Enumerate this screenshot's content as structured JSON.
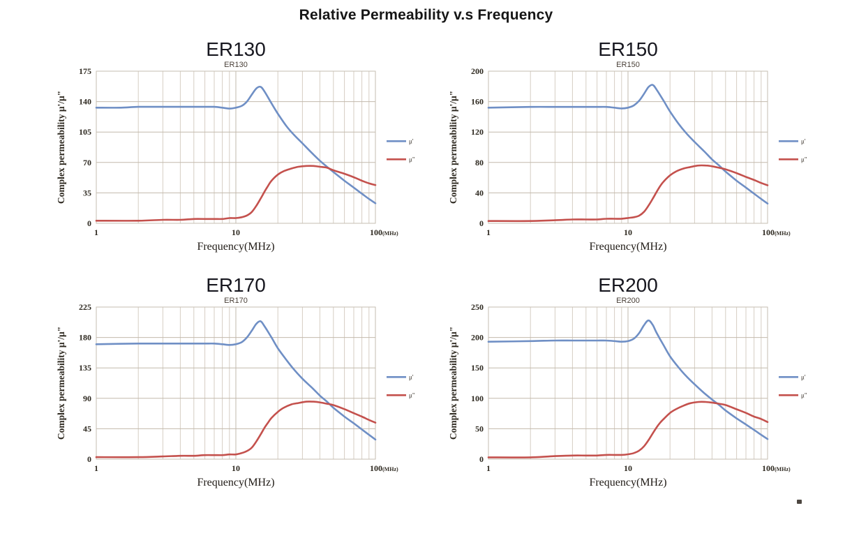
{
  "page": {
    "title": "Relative Permeability v.s Frequency"
  },
  "colors": {
    "mu_prime": "#6f8fc5",
    "mu_double_prime": "#c4514d",
    "grid_minor": "#d6cec3",
    "grid_major": "#c2b9ac",
    "plot_border": "#c6beb2",
    "axis_text": "#2e2920",
    "title_text": "#17171f",
    "subtitle_text": "#4a4038"
  },
  "legend": {
    "mu_prime": "μ'",
    "mu_double_prime": "μ\""
  },
  "axis": {
    "x_label": "Frequency(MHz)",
    "y_label": "Complex permeability  μ'/μ\"",
    "x_tick_1": "1",
    "x_tick_10": "10",
    "x_tick_100": "100",
    "x_unit_suffix": "(MHz)"
  },
  "chart_data": [
    {
      "type": "line",
      "title": "ER130",
      "subtitle": "ER130",
      "xscale": "log",
      "xlim": [
        1,
        100
      ],
      "ylim": [
        0,
        175
      ],
      "yticks": [
        0,
        35,
        70,
        105,
        140,
        175
      ],
      "xlabel": "Frequency(MHz)",
      "ylabel": "Complex permeability μ'/μ\"",
      "legend_position": "right",
      "grid": true,
      "series": [
        {
          "name": "μ'",
          "color_key": "mu_prime",
          "points": [
            [
              1,
              133
            ],
            [
              1.5,
              133
            ],
            [
              2,
              134
            ],
            [
              3,
              134
            ],
            [
              4,
              134
            ],
            [
              5,
              134
            ],
            [
              6,
              134
            ],
            [
              7,
              134
            ],
            [
              8,
              133
            ],
            [
              9,
              132
            ],
            [
              10,
              133
            ],
            [
              11,
              135
            ],
            [
              12,
              140
            ],
            [
              13,
              148
            ],
            [
              14,
              155
            ],
            [
              15,
              157
            ],
            [
              16,
              152
            ],
            [
              18,
              138
            ],
            [
              20,
              126
            ],
            [
              23,
              112
            ],
            [
              26,
              102
            ],
            [
              30,
              92
            ],
            [
              35,
              81
            ],
            [
              40,
              72
            ],
            [
              45,
              65
            ],
            [
              50,
              59
            ],
            [
              60,
              49
            ],
            [
              70,
              41
            ],
            [
              80,
              34
            ],
            [
              90,
              28
            ],
            [
              100,
              23
            ]
          ]
        },
        {
          "name": "μ\"",
          "color_key": "mu_double_prime",
          "points": [
            [
              1,
              3
            ],
            [
              2,
              3
            ],
            [
              3,
              4
            ],
            [
              4,
              4
            ],
            [
              5,
              5
            ],
            [
              6,
              5
            ],
            [
              7,
              5
            ],
            [
              8,
              5
            ],
            [
              9,
              6
            ],
            [
              10,
              6
            ],
            [
              11,
              7
            ],
            [
              12,
              9
            ],
            [
              13,
              13
            ],
            [
              14,
              20
            ],
            [
              15,
              28
            ],
            [
              16,
              36
            ],
            [
              17,
              43
            ],
            [
              18,
              49
            ],
            [
              20,
              56
            ],
            [
              22,
              60
            ],
            [
              25,
              63
            ],
            [
              28,
              65
            ],
            [
              32,
              66
            ],
            [
              36,
              66
            ],
            [
              40,
              65
            ],
            [
              45,
              64
            ],
            [
              50,
              61
            ],
            [
              60,
              57
            ],
            [
              70,
              53
            ],
            [
              80,
              49
            ],
            [
              90,
              46
            ],
            [
              100,
              44
            ]
          ]
        }
      ]
    },
    {
      "type": "line",
      "title": "ER150",
      "subtitle": "ER150",
      "xscale": "log",
      "xlim": [
        1,
        100
      ],
      "ylim": [
        0,
        200
      ],
      "yticks": [
        0,
        40,
        80,
        120,
        160,
        200
      ],
      "xlabel": "Frequency(MHz)",
      "ylabel": "Complex permeability μ'/μ\"",
      "legend_position": "right",
      "grid": true,
      "series": [
        {
          "name": "μ'",
          "color_key": "mu_prime",
          "points": [
            [
              1,
              152
            ],
            [
              2,
              153
            ],
            [
              3,
              153
            ],
            [
              4,
              153
            ],
            [
              5,
              153
            ],
            [
              6,
              153
            ],
            [
              7,
              153
            ],
            [
              8,
              152
            ],
            [
              9,
              151
            ],
            [
              10,
              152
            ],
            [
              11,
              155
            ],
            [
              12,
              161
            ],
            [
              13,
              170
            ],
            [
              14,
              179
            ],
            [
              15,
              182
            ],
            [
              16,
              176
            ],
            [
              18,
              161
            ],
            [
              20,
              147
            ],
            [
              23,
              131
            ],
            [
              26,
              119
            ],
            [
              30,
              107
            ],
            [
              35,
              95
            ],
            [
              40,
              84
            ],
            [
              45,
              76
            ],
            [
              50,
              68
            ],
            [
              60,
              56
            ],
            [
              70,
              47
            ],
            [
              80,
              39
            ],
            [
              90,
              32
            ],
            [
              100,
              26
            ]
          ]
        },
        {
          "name": "μ\"",
          "color_key": "mu_double_prime",
          "points": [
            [
              1,
              3
            ],
            [
              2,
              3
            ],
            [
              3,
              4
            ],
            [
              4,
              5
            ],
            [
              5,
              5
            ],
            [
              6,
              5
            ],
            [
              7,
              6
            ],
            [
              8,
              6
            ],
            [
              9,
              6
            ],
            [
              10,
              7
            ],
            [
              11,
              8
            ],
            [
              12,
              10
            ],
            [
              13,
              15
            ],
            [
              14,
              23
            ],
            [
              15,
              32
            ],
            [
              16,
              41
            ],
            [
              17,
              49
            ],
            [
              18,
              55
            ],
            [
              20,
              63
            ],
            [
              22,
              68
            ],
            [
              25,
              72
            ],
            [
              28,
              74
            ],
            [
              32,
              76
            ],
            [
              36,
              76
            ],
            [
              40,
              75
            ],
            [
              45,
              73
            ],
            [
              50,
              71
            ],
            [
              60,
              66
            ],
            [
              70,
              61
            ],
            [
              80,
              57
            ],
            [
              90,
              53
            ],
            [
              100,
              50
            ]
          ]
        }
      ]
    },
    {
      "type": "line",
      "title": "ER170",
      "subtitle": "ER170",
      "xscale": "log",
      "xlim": [
        1,
        100
      ],
      "ylim": [
        0,
        225
      ],
      "yticks": [
        0,
        45,
        90,
        135,
        180,
        225
      ],
      "xlabel": "Frequency(MHz)",
      "ylabel": "Complex permeability μ'/μ\"",
      "legend_position": "right",
      "grid": true,
      "series": [
        {
          "name": "μ'",
          "color_key": "mu_prime",
          "points": [
            [
              1,
              170
            ],
            [
              2,
              171
            ],
            [
              3,
              171
            ],
            [
              4,
              171
            ],
            [
              5,
              171
            ],
            [
              6,
              171
            ],
            [
              7,
              171
            ],
            [
              8,
              170
            ],
            [
              9,
              169
            ],
            [
              10,
              170
            ],
            [
              11,
              173
            ],
            [
              12,
              180
            ],
            [
              13,
              190
            ],
            [
              14,
              200
            ],
            [
              15,
              204
            ],
            [
              16,
              197
            ],
            [
              18,
              180
            ],
            [
              20,
              164
            ],
            [
              23,
              147
            ],
            [
              26,
              133
            ],
            [
              30,
              119
            ],
            [
              35,
              106
            ],
            [
              40,
              94
            ],
            [
              45,
              85
            ],
            [
              50,
              76
            ],
            [
              60,
              63
            ],
            [
              70,
              53
            ],
            [
              80,
              44
            ],
            [
              90,
              36
            ],
            [
              100,
              29
            ]
          ]
        },
        {
          "name": "μ\"",
          "color_key": "mu_double_prime",
          "points": [
            [
              1,
              3
            ],
            [
              2,
              3
            ],
            [
              3,
              4
            ],
            [
              4,
              5
            ],
            [
              5,
              5
            ],
            [
              6,
              6
            ],
            [
              7,
              6
            ],
            [
              8,
              6
            ],
            [
              9,
              7
            ],
            [
              10,
              7
            ],
            [
              11,
              9
            ],
            [
              12,
              12
            ],
            [
              13,
              17
            ],
            [
              14,
              26
            ],
            [
              15,
              36
            ],
            [
              16,
              46
            ],
            [
              17,
              54
            ],
            [
              18,
              61
            ],
            [
              20,
              70
            ],
            [
              22,
              76
            ],
            [
              25,
              81
            ],
            [
              28,
              83
            ],
            [
              32,
              85
            ],
            [
              36,
              85
            ],
            [
              40,
              84
            ],
            [
              45,
              82
            ],
            [
              50,
              80
            ],
            [
              60,
              74
            ],
            [
              70,
              68
            ],
            [
              80,
              63
            ],
            [
              90,
              58
            ],
            [
              100,
              54
            ]
          ]
        }
      ]
    },
    {
      "type": "line",
      "title": "ER200",
      "subtitle": "ER200",
      "xscale": "log",
      "xlim": [
        1,
        100
      ],
      "ylim": [
        0,
        250
      ],
      "yticks": [
        0,
        50,
        100,
        150,
        200,
        250
      ],
      "xlabel": "Frequency(MHz)",
      "ylabel": "Complex permeability μ'/μ\"",
      "legend_position": "right",
      "grid": true,
      "series": [
        {
          "name": "μ'",
          "color_key": "mu_prime",
          "points": [
            [
              1,
              193
            ],
            [
              2,
              194
            ],
            [
              3,
              195
            ],
            [
              4,
              195
            ],
            [
              5,
              195
            ],
            [
              6,
              195
            ],
            [
              7,
              195
            ],
            [
              8,
              194
            ],
            [
              9,
              193
            ],
            [
              10,
              194
            ],
            [
              11,
              198
            ],
            [
              12,
              207
            ],
            [
              13,
              220
            ],
            [
              14,
              228
            ],
            [
              15,
              221
            ],
            [
              16,
              208
            ],
            [
              18,
              187
            ],
            [
              20,
              169
            ],
            [
              23,
              151
            ],
            [
              26,
              137
            ],
            [
              30,
              123
            ],
            [
              35,
              109
            ],
            [
              40,
              98
            ],
            [
              45,
              89
            ],
            [
              50,
              80
            ],
            [
              60,
              67
            ],
            [
              70,
              57
            ],
            [
              80,
              48
            ],
            [
              90,
              40
            ],
            [
              100,
              33
            ]
          ]
        },
        {
          "name": "μ\"",
          "color_key": "mu_double_prime",
          "points": [
            [
              1,
              3
            ],
            [
              2,
              3
            ],
            [
              3,
              5
            ],
            [
              4,
              6
            ],
            [
              5,
              6
            ],
            [
              6,
              6
            ],
            [
              7,
              7
            ],
            [
              8,
              7
            ],
            [
              9,
              7
            ],
            [
              10,
              8
            ],
            [
              11,
              10
            ],
            [
              12,
              14
            ],
            [
              13,
              21
            ],
            [
              14,
              31
            ],
            [
              15,
              42
            ],
            [
              16,
              52
            ],
            [
              17,
              60
            ],
            [
              18,
              66
            ],
            [
              20,
              76
            ],
            [
              22,
              82
            ],
            [
              25,
              88
            ],
            [
              28,
              92
            ],
            [
              32,
              94
            ],
            [
              36,
              94
            ],
            [
              40,
              93
            ],
            [
              45,
              91
            ],
            [
              50,
              89
            ],
            [
              60,
              82
            ],
            [
              70,
              76
            ],
            [
              80,
              70
            ],
            [
              90,
              66
            ],
            [
              100,
              61
            ]
          ]
        }
      ]
    }
  ]
}
